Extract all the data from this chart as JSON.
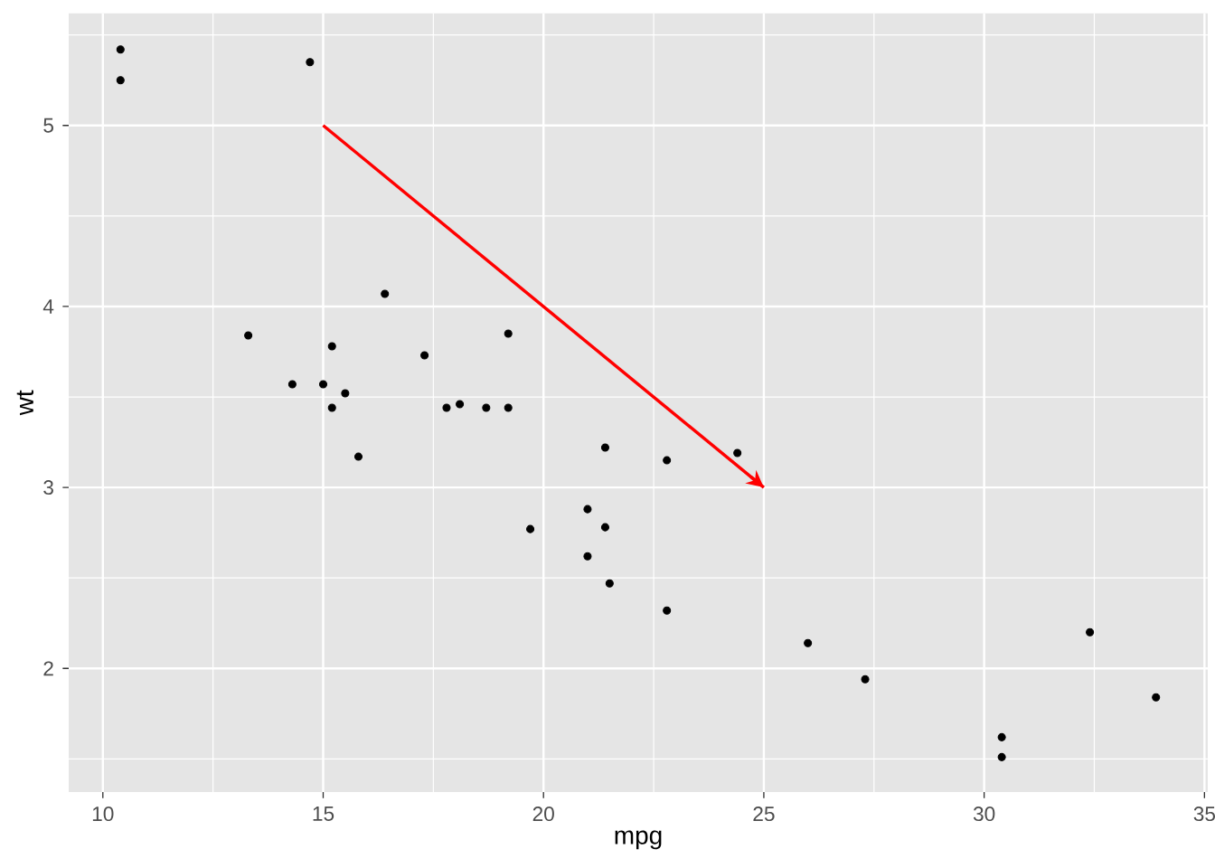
{
  "chart_data": {
    "type": "scatter",
    "xlabel": "mpg",
    "ylabel": "wt",
    "xlim": [
      9.225,
      35.075
    ],
    "ylim": [
      1.317,
      5.62
    ],
    "xticks": [
      10,
      15,
      20,
      25,
      30,
      35
    ],
    "yticks": [
      2,
      3,
      4,
      5
    ],
    "grid": true,
    "marker": "circle",
    "series": [
      {
        "color": "#000000",
        "x": [
          21.0,
          21.0,
          22.8,
          21.4,
          18.7,
          18.1,
          14.3,
          24.4,
          22.8,
          19.2,
          17.8,
          16.4,
          17.3,
          15.2,
          10.4,
          10.4,
          14.7,
          32.4,
          30.4,
          33.9,
          21.5,
          15.5,
          15.2,
          13.3,
          19.2,
          27.3,
          26.0,
          30.4,
          15.8,
          19.7,
          15.0,
          21.4
        ],
        "values": [
          2.62,
          2.88,
          2.32,
          3.22,
          3.44,
          3.46,
          3.57,
          3.19,
          3.15,
          3.44,
          3.44,
          4.07,
          3.73,
          3.78,
          5.25,
          5.42,
          5.35,
          2.2,
          1.62,
          1.84,
          2.47,
          3.52,
          3.44,
          3.84,
          3.85,
          1.94,
          2.14,
          1.51,
          3.17,
          2.77,
          3.57,
          2.78
        ]
      },
      {
        "type": "line",
        "color": "#ff0000",
        "marker": "none",
        "line_style": "solid",
        "x": [
          15,
          25
        ],
        "values": [
          5,
          3
        ]
      }
    ]
  }
}
